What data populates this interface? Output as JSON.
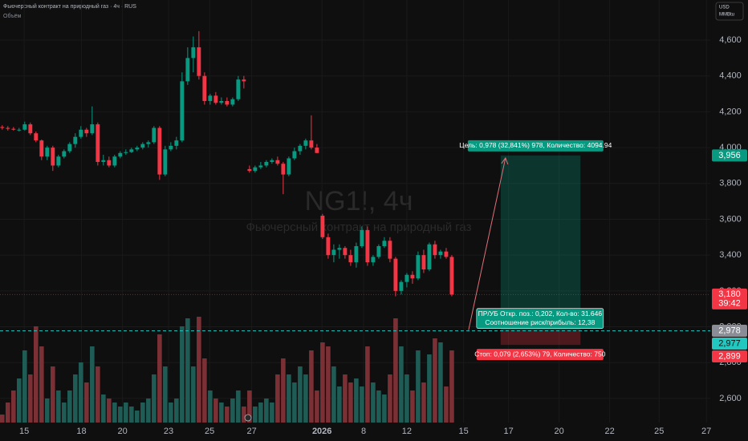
{
  "chart_data": {
    "type": "candlestick",
    "header": {
      "title": "Фьючерсный контракт на природный газ · 4ч · RUS",
      "volume_label": "Объём"
    },
    "unit_box": {
      "currency": "USD",
      "unit": "MMBtu"
    },
    "watermark": {
      "symbol": "NG1!, 4ч",
      "description": "Фьючерсный контракт на природный газ"
    },
    "up_color": "#089981",
    "down_color": "#f23645",
    "volume_up_color": "#1f5c55",
    "volume_down_color": "#7b3035",
    "grid": true,
    "xlim": [
      -0.4,
      126
    ],
    "ylim": [
      2520,
      4720
    ],
    "yticks": [
      {
        "value": 2600,
        "label": "2,600"
      },
      {
        "value": 2800,
        "label": "2,800"
      },
      {
        "value": 3000,
        "label": "3,000"
      },
      {
        "value": 3200,
        "label": "3,200"
      },
      {
        "value": 3400,
        "label": "3,400"
      },
      {
        "value": 3600,
        "label": "3,600"
      },
      {
        "value": 3800,
        "label": "3,800"
      },
      {
        "value": 4000,
        "label": "4,000"
      },
      {
        "value": 4200,
        "label": "4,200"
      },
      {
        "value": 4400,
        "label": "4,400"
      },
      {
        "value": 4600,
        "label": "4,600"
      }
    ],
    "xticks": [
      {
        "value": 3.9,
        "label": "15"
      },
      {
        "value": 14.1,
        "label": "18"
      },
      {
        "value": 21.4,
        "label": "20"
      },
      {
        "value": 29.6,
        "label": "23"
      },
      {
        "value": 36.9,
        "label": "25"
      },
      {
        "value": 44.4,
        "label": "27"
      },
      {
        "value": 56.9,
        "label": "2026"
      },
      {
        "value": 64.3,
        "label": "8"
      },
      {
        "value": 72,
        "label": "12"
      },
      {
        "value": 82.1,
        "label": "15"
      },
      {
        "value": 90.1,
        "label": "17"
      },
      {
        "value": 99.1,
        "label": "20"
      },
      {
        "value": 108.1,
        "label": "22"
      },
      {
        "value": 116.9,
        "label": "25"
      },
      {
        "value": 125.3,
        "label": "27"
      }
    ],
    "candles": [
      [
        4115,
        4125,
        4100,
        4110
      ],
      [
        4110,
        4120,
        4095,
        4105
      ],
      [
        4105,
        4115,
        4095,
        4100
      ],
      [
        4100,
        4110,
        4090,
        4100
      ],
      [
        4100,
        4145,
        4095,
        4130
      ],
      [
        4130,
        4140,
        4070,
        4080
      ],
      [
        4080,
        4090,
        4030,
        4040
      ],
      [
        4040,
        4045,
        3930,
        3950
      ],
      [
        3950,
        4010,
        3930,
        4000
      ],
      [
        4000,
        4010,
        3870,
        3900
      ],
      [
        3900,
        3960,
        3890,
        3950
      ],
      [
        3950,
        3990,
        3940,
        3980
      ],
      [
        3980,
        4030,
        3970,
        4020
      ],
      [
        4020,
        4080,
        4000,
        4060
      ],
      [
        4060,
        4120,
        4050,
        4100
      ],
      [
        4100,
        4110,
        4060,
        4080
      ],
      [
        4080,
        4230,
        4070,
        4130
      ],
      [
        4130,
        4140,
        3900,
        3920
      ],
      [
        3920,
        3960,
        3900,
        3930
      ],
      [
        3930,
        3950,
        3890,
        3900
      ],
      [
        3900,
        3960,
        3890,
        3950
      ],
      [
        3950,
        3980,
        3940,
        3970
      ],
      [
        3970,
        3990,
        3960,
        3975
      ],
      [
        3975,
        4000,
        3970,
        3990
      ],
      [
        3990,
        4010,
        3980,
        4000
      ],
      [
        4000,
        4030,
        3990,
        4020
      ],
      [
        4020,
        4040,
        4000,
        4030
      ],
      [
        4030,
        4120,
        4020,
        4110
      ],
      [
        4110,
        4120,
        3820,
        3850
      ],
      [
        3850,
        4010,
        3840,
        3990
      ],
      [
        3990,
        4030,
        3980,
        4010
      ],
      [
        4010,
        4060,
        3990,
        4040
      ],
      [
        4040,
        4420,
        4030,
        4370
      ],
      [
        4370,
        4560,
        4350,
        4500
      ],
      [
        4500,
        4620,
        4420,
        4560
      ],
      [
        4560,
        4650,
        4380,
        4400
      ],
      [
        4400,
        4420,
        4240,
        4260
      ],
      [
        4260,
        4300,
        4240,
        4290
      ],
      [
        4290,
        4310,
        4240,
        4250
      ],
      [
        4250,
        4280,
        4240,
        4260
      ],
      [
        4260,
        4280,
        4230,
        4240
      ],
      [
        4240,
        4280,
        4230,
        4270
      ],
      [
        4270,
        4400,
        4260,
        4380
      ],
      [
        4380,
        4400,
        4330,
        4370
      ],
      [
        3880,
        3900,
        3860,
        3870
      ],
      [
        3870,
        3900,
        3860,
        3890
      ],
      [
        3890,
        3920,
        3880,
        3900
      ],
      [
        3900,
        3930,
        3890,
        3920
      ],
      [
        3920,
        3940,
        3910,
        3930
      ],
      [
        3930,
        3950,
        3900,
        3910
      ],
      [
        3910,
        3920,
        3740,
        3850
      ],
      [
        3850,
        3950,
        3840,
        3940
      ],
      [
        3940,
        4000,
        3930,
        3980
      ],
      [
        3980,
        4020,
        3960,
        4010
      ],
      [
        4010,
        4050,
        3990,
        4040
      ],
      [
        4040,
        4180,
        3990,
        4000
      ],
      [
        4000,
        4020,
        3970,
        3970
      ],
      [
        3620,
        3630,
        3490,
        3500
      ],
      [
        3500,
        3520,
        3380,
        3400
      ],
      [
        3400,
        3460,
        3360,
        3430
      ],
      [
        3430,
        3460,
        3380,
        3440
      ],
      [
        3440,
        3450,
        3380,
        3400
      ],
      [
        3400,
        3430,
        3340,
        3360
      ],
      [
        3360,
        3470,
        3330,
        3450
      ],
      [
        3450,
        3560,
        3440,
        3540
      ],
      [
        3540,
        3560,
        3340,
        3360
      ],
      [
        3360,
        3400,
        3340,
        3390
      ],
      [
        3390,
        3460,
        3380,
        3450
      ],
      [
        3450,
        3500,
        3440,
        3480
      ],
      [
        3480,
        3500,
        3360,
        3380
      ],
      [
        3380,
        3390,
        3170,
        3200
      ],
      [
        3200,
        3260,
        3180,
        3250
      ],
      [
        3250,
        3300,
        3220,
        3290
      ],
      [
        3290,
        3310,
        3240,
        3270
      ],
      [
        3270,
        3420,
        3260,
        3400
      ],
      [
        3400,
        3430,
        3300,
        3320
      ],
      [
        3320,
        3470,
        3310,
        3460
      ],
      [
        3460,
        3480,
        3380,
        3400
      ],
      [
        3400,
        3430,
        3380,
        3420
      ],
      [
        3420,
        3440,
        3380,
        3390
      ],
      [
        3390,
        3400,
        3170,
        3180
      ]
    ],
    "volumes": [
      10,
      25,
      40,
      55,
      90,
      60,
      120,
      95,
      30,
      70,
      40,
      25,
      40,
      60,
      75,
      50,
      95,
      70,
      35,
      30,
      25,
      20,
      25,
      20,
      15,
      25,
      30,
      60,
      110,
      70,
      25,
      30,
      120,
      130,
      70,
      132,
      80,
      40,
      30,
      25,
      20,
      30,
      40,
      20,
      40,
      20,
      25,
      30,
      25,
      60,
      80,
      60,
      50,
      70,
      60,
      90,
      40,
      100,
      95,
      70,
      45,
      60,
      50,
      55,
      45,
      95,
      50,
      40,
      35,
      60,
      130,
      95,
      60,
      40,
      90,
      50,
      85,
      105,
      100,
      45,
      90
    ],
    "price_labels": [
      {
        "value": 3956,
        "label": "3,956",
        "color": "#089981"
      },
      {
        "value": 3180,
        "label": "3,180",
        "color": "#f23645"
      },
      {
        "value": 2978,
        "label": "2,978",
        "color": "#8a8d96"
      },
      {
        "value": 2977,
        "label": "2,977",
        "color": "#22c7c0"
      },
      {
        "value": 2899,
        "label": "2,899",
        "color": "#f23645"
      }
    ],
    "timer": "39:42",
    "current_price": 3180,
    "position": {
      "start": 88.7,
      "end": 102.9,
      "target": 3956,
      "entry": 2977,
      "stop": 2899,
      "target_text": "Цель: 0,978 (32,841%) 978, Количество: 4094.94",
      "pnl_text": "ПР/УБ Откр. поз.: 0,202, Кол-во: 31.646",
      "ratio_text": "Соотношение риск/прибыль: 12,38",
      "stop_text": "Стоп: 0,079 (2,653%) 79, Количество: 750"
    }
  }
}
